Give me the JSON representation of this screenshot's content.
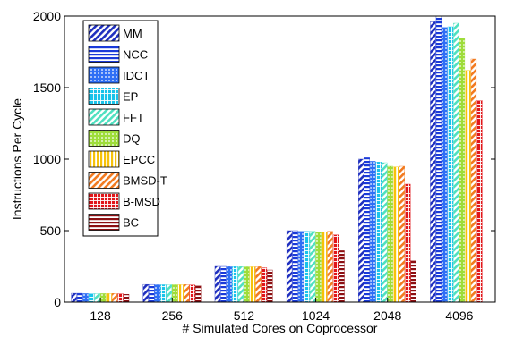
{
  "chart_data": {
    "type": "bar",
    "xlabel": "# Simulated Cores on Coprocessor",
    "ylabel": "Instructions Per Cycle",
    "ylim": [
      0,
      2000
    ],
    "yticks": [
      "0",
      "500",
      "1000",
      "1500",
      "2000"
    ],
    "categories": [
      "128",
      "256",
      "512",
      "1024",
      "2048",
      "4096"
    ],
    "legend_position": "top-left",
    "grid": false,
    "series": [
      {
        "name": "MM",
        "color": "#1f2fbf",
        "pattern": "diag-stripes",
        "values": [
          62,
          124,
          250,
          500,
          1000,
          1960
        ]
      },
      {
        "name": "NCC",
        "color": "#1a3ad9",
        "pattern": "horiz-stripes",
        "values": [
          62,
          124,
          250,
          500,
          1010,
          2000
        ]
      },
      {
        "name": "IDCT",
        "color": "#2f6ff5",
        "pattern": "dots",
        "values": [
          60,
          122,
          248,
          495,
          985,
          1920
        ]
      },
      {
        "name": "EP",
        "color": "#19c3ea",
        "pattern": "grid",
        "values": [
          60,
          122,
          248,
          495,
          980,
          1925
        ]
      },
      {
        "name": "FFT",
        "color": "#4fe0c0",
        "pattern": "diag-stripes",
        "values": [
          60,
          122,
          248,
          495,
          975,
          1950
        ]
      },
      {
        "name": "DQ",
        "color": "#9edd3a",
        "pattern": "dots",
        "values": [
          60,
          122,
          247,
          490,
          950,
          1845
        ]
      },
      {
        "name": "EPCC",
        "color": "#f6c20a",
        "pattern": "vert-stripes",
        "values": [
          60,
          122,
          247,
          490,
          945,
          1620
        ]
      },
      {
        "name": "BMSD-T",
        "color": "#f27a20",
        "pattern": "diag-stripes",
        "values": [
          61,
          123,
          248,
          495,
          950,
          1700
        ]
      },
      {
        "name": "B-MSD",
        "color": "#e0161a",
        "pattern": "grid",
        "values": [
          60,
          120,
          240,
          470,
          825,
          1410
        ]
      },
      {
        "name": "BC",
        "color": "#8c0f12",
        "pattern": "horiz-stripes",
        "values": [
          55,
          115,
          225,
          360,
          290,
          0
        ]
      }
    ]
  }
}
